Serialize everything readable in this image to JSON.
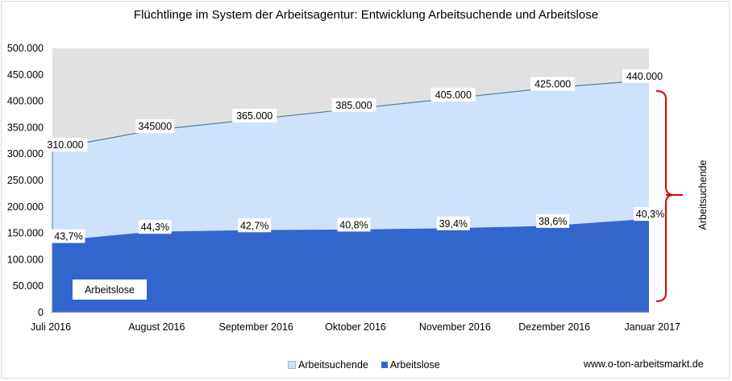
{
  "title": "Flüchtlinge  im System der Arbeitsagentur: Entwicklung Arbeitsuchende und Arbeitslose",
  "source": "www.o-ton-arbeitsmarkt.de",
  "legend": [
    {
      "label": "Arbeitsuchende",
      "color": "#cfe2fb"
    },
    {
      "label": "Arbeitslose",
      "color": "#3366cc"
    }
  ],
  "area_label": "Arbeitslose",
  "bracket_label": "Arbeitsuchende",
  "colors": {
    "plot_bg": "#e1e1e1",
    "suchende": "#cfe2fb",
    "suchende_line": "#4a7fa0",
    "arbeitslose": "#3366cc",
    "bracket": "#e00000"
  },
  "chart_data": {
    "type": "area",
    "categories": [
      "Juli 2016",
      "August 2016",
      "September 2016",
      "Oktober 2016",
      "November 2016",
      "Dezember 2016",
      "Januar 2017"
    ],
    "series": [
      {
        "name": "Arbeitsuchende",
        "values": [
          310000,
          345000,
          365000,
          385000,
          405000,
          425000,
          440000
        ],
        "data_labels": [
          "310.000",
          "345000",
          "365.000",
          "385.000",
          "405.000",
          "425.000",
          "440.000"
        ]
      },
      {
        "name": "Arbeitslose",
        "values": [
          135470,
          152835,
          155855,
          157080,
          159570,
          164050,
          177320
        ],
        "data_labels": [
          "43,7%",
          "44,3%",
          "42,7%",
          "40,8%",
          "39,4%",
          "38,6%",
          "40,3%"
        ]
      }
    ],
    "yticks": [
      "0",
      "50.000",
      "100.000",
      "150.000",
      "200.000",
      "250.000",
      "300.000",
      "350.000",
      "400.000",
      "450.000",
      "500.000"
    ],
    "ylim": [
      0,
      500000
    ],
    "legend_position": "bottom"
  }
}
